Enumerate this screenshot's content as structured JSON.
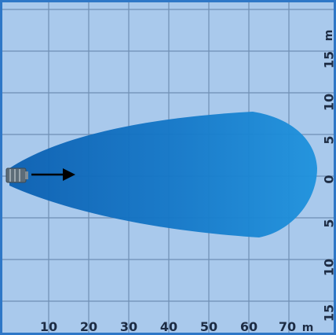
{
  "diagram": {
    "colors": {
      "background": "#a9c9ec",
      "border": "#2e77c7",
      "grid": "#6f8fb4",
      "beam_light": "#1e92dd",
      "beam_dark": "#0a5fb1",
      "text": "#1d2c44",
      "arrow": "#000000"
    },
    "x_axis": {
      "ticks": [
        "10",
        "20",
        "30",
        "40",
        "50",
        "60",
        "70"
      ],
      "unit": "m"
    },
    "y_axis": {
      "ticks": [
        "15",
        "10",
        "5",
        "0",
        "5",
        "10",
        "15"
      ],
      "unit": "m"
    },
    "beam": {
      "shape": "teardrop",
      "max_distance_m": 77,
      "max_half_width_m": 8,
      "direction_icon": "arrow-right-icon",
      "source_icon": "lamp-icon"
    }
  }
}
